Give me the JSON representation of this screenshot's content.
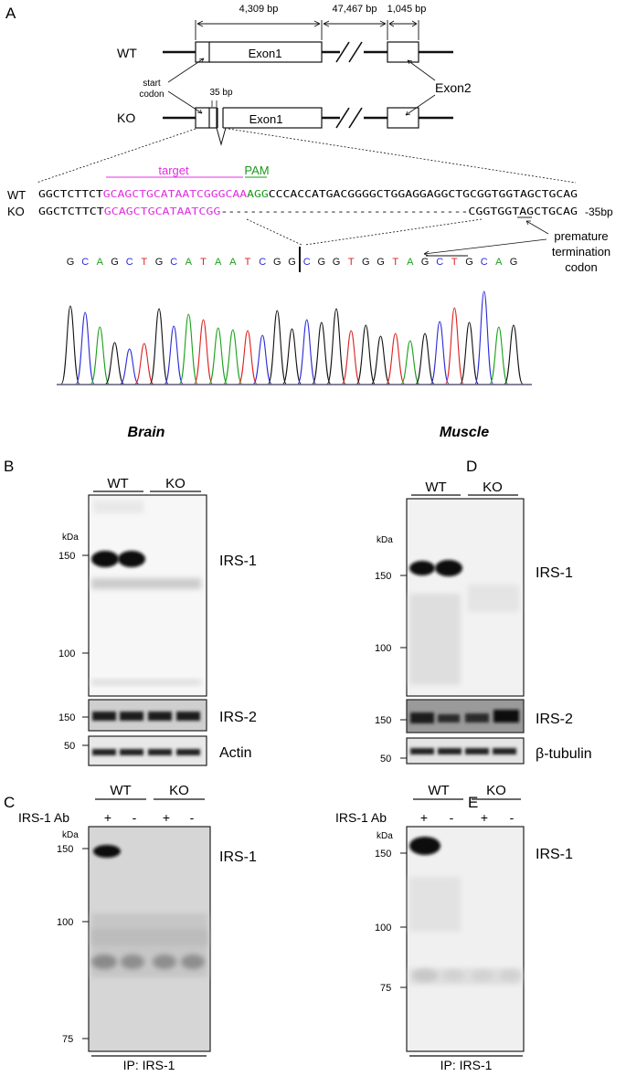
{
  "panel_letters": {
    "a": "A",
    "b": "B",
    "c": "C",
    "d": "D",
    "e": "E"
  },
  "gene_map": {
    "dist_exon1": "4,309 bp",
    "dist_intron": "47,467 bp",
    "dist_exon2": "1,045 bp",
    "wt_label": "WT",
    "ko_label": "KO",
    "exon1_label": "Exon1",
    "exon2_label": "Exon2",
    "start_codon": [
      "start",
      "codon"
    ],
    "deletion_label": "35 bp"
  },
  "sequence": {
    "target_label": "target",
    "pam_label": "PAM",
    "wt_label": "WT",
    "ko_label": "KO",
    "wt_prefix": "GGCTCTTCT",
    "wt_target": "GCAGCTGCATAATCGGGCAA",
    "wt_pam": "AGG",
    "wt_rest": "CCCACCATGACGGGGCTGGAGGAGGCTGCGGTGGTAGCTGCAG",
    "ko_prefix": "GGCTCTTCT",
    "ko_target": "GCAGCTGCATAATCGG",
    "ko_dashes": "----------------------------------",
    "ko_rest": "CGGTGGTAGCTGCAG",
    "deletion_note": "-35bp",
    "ptc_label": [
      "premature",
      "termination",
      "codon"
    ]
  },
  "chromatogram": {
    "bases": [
      "G",
      "C",
      "A",
      "G",
      "C",
      "T",
      "G",
      "C",
      "A",
      "T",
      "A",
      "A",
      "T",
      "C",
      "G",
      "G",
      "C",
      "G",
      "G",
      "T",
      "G",
      "G",
      "T",
      "A",
      "G",
      "C",
      "T",
      "G",
      "C",
      "A",
      "G"
    ],
    "colors": {
      "A": "#18a018",
      "C": "#2a2ad8",
      "G": "#111111",
      "T": "#dd2020"
    }
  },
  "panel_b": {
    "tissue": "Brain",
    "groups": [
      "WT",
      "KO"
    ],
    "kda_label": "kDa",
    "main_marks": [
      "150",
      "100"
    ],
    "main_label": "IRS-1",
    "strip1_mark": "150",
    "strip1_label": "IRS-2",
    "strip2_mark": "50",
    "strip2_label": "Actin"
  },
  "panel_d": {
    "tissue": "Muscle",
    "groups": [
      "WT",
      "KO"
    ],
    "kda_label": "kDa",
    "main_marks": [
      "150",
      "100"
    ],
    "main_label": "IRS-1",
    "strip1_mark": "150",
    "strip1_label": "IRS-2",
    "strip2_mark": "50",
    "strip2_label": "β-tubulin"
  },
  "panel_c": {
    "groups": [
      "WT",
      "KO"
    ],
    "ab_label": "IRS-1 Ab",
    "lane_signs": [
      "+",
      "-",
      "+",
      "-"
    ],
    "kda_label": "kDa",
    "marks": [
      "150",
      "100",
      "75"
    ],
    "label": "IRS-1",
    "ip_label": "IP: IRS-1"
  },
  "panel_e": {
    "groups": [
      "WT",
      "KO"
    ],
    "ab_label": "IRS-1 Ab",
    "lane_signs": [
      "+",
      "-",
      "+",
      "-"
    ],
    "kda_label": "kDa",
    "marks": [
      "150",
      "100",
      "75"
    ],
    "label": "IRS-1",
    "ip_label": "IP: IRS-1"
  }
}
